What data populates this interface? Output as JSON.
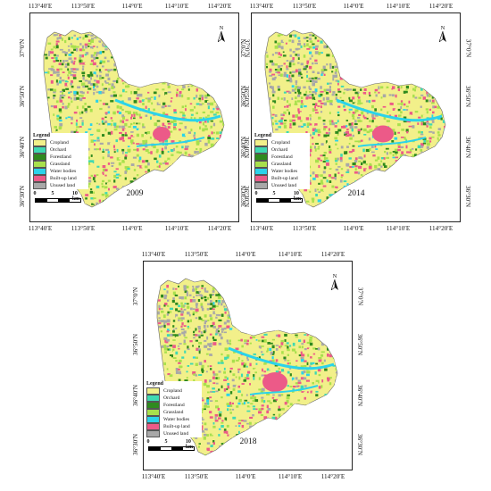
{
  "panels": [
    {
      "year": "2009"
    },
    {
      "year": "2014"
    },
    {
      "year": "2018"
    }
  ],
  "graticule": {
    "lon_labels": [
      "113°40′E",
      "113°50′E",
      "114°0′E",
      "114°10′E",
      "114°20′E"
    ],
    "lat_labels": [
      "37°0′N",
      "36°50′N",
      "36°40′N",
      "36°30′N"
    ]
  },
  "north_arrow": {
    "letter": "N",
    "icon": "north-arrow-icon"
  },
  "legend": {
    "title": "Legend",
    "items": [
      {
        "label": "Cropland",
        "color": "#f2f08a"
      },
      {
        "label": "Orchard",
        "color": "#3fd9b2"
      },
      {
        "label": "Forestland",
        "color": "#2f8a1e"
      },
      {
        "label": "Grassland",
        "color": "#a8e04d"
      },
      {
        "label": "Water bodies",
        "color": "#2bd3ea"
      },
      {
        "label": "Built-up land",
        "color": "#ec5a88"
      },
      {
        "label": "Unused land",
        "color": "#a8a8a8"
      }
    ]
  },
  "scale_bar": {
    "labels": [
      "0",
      "5",
      "10 km"
    ]
  }
}
